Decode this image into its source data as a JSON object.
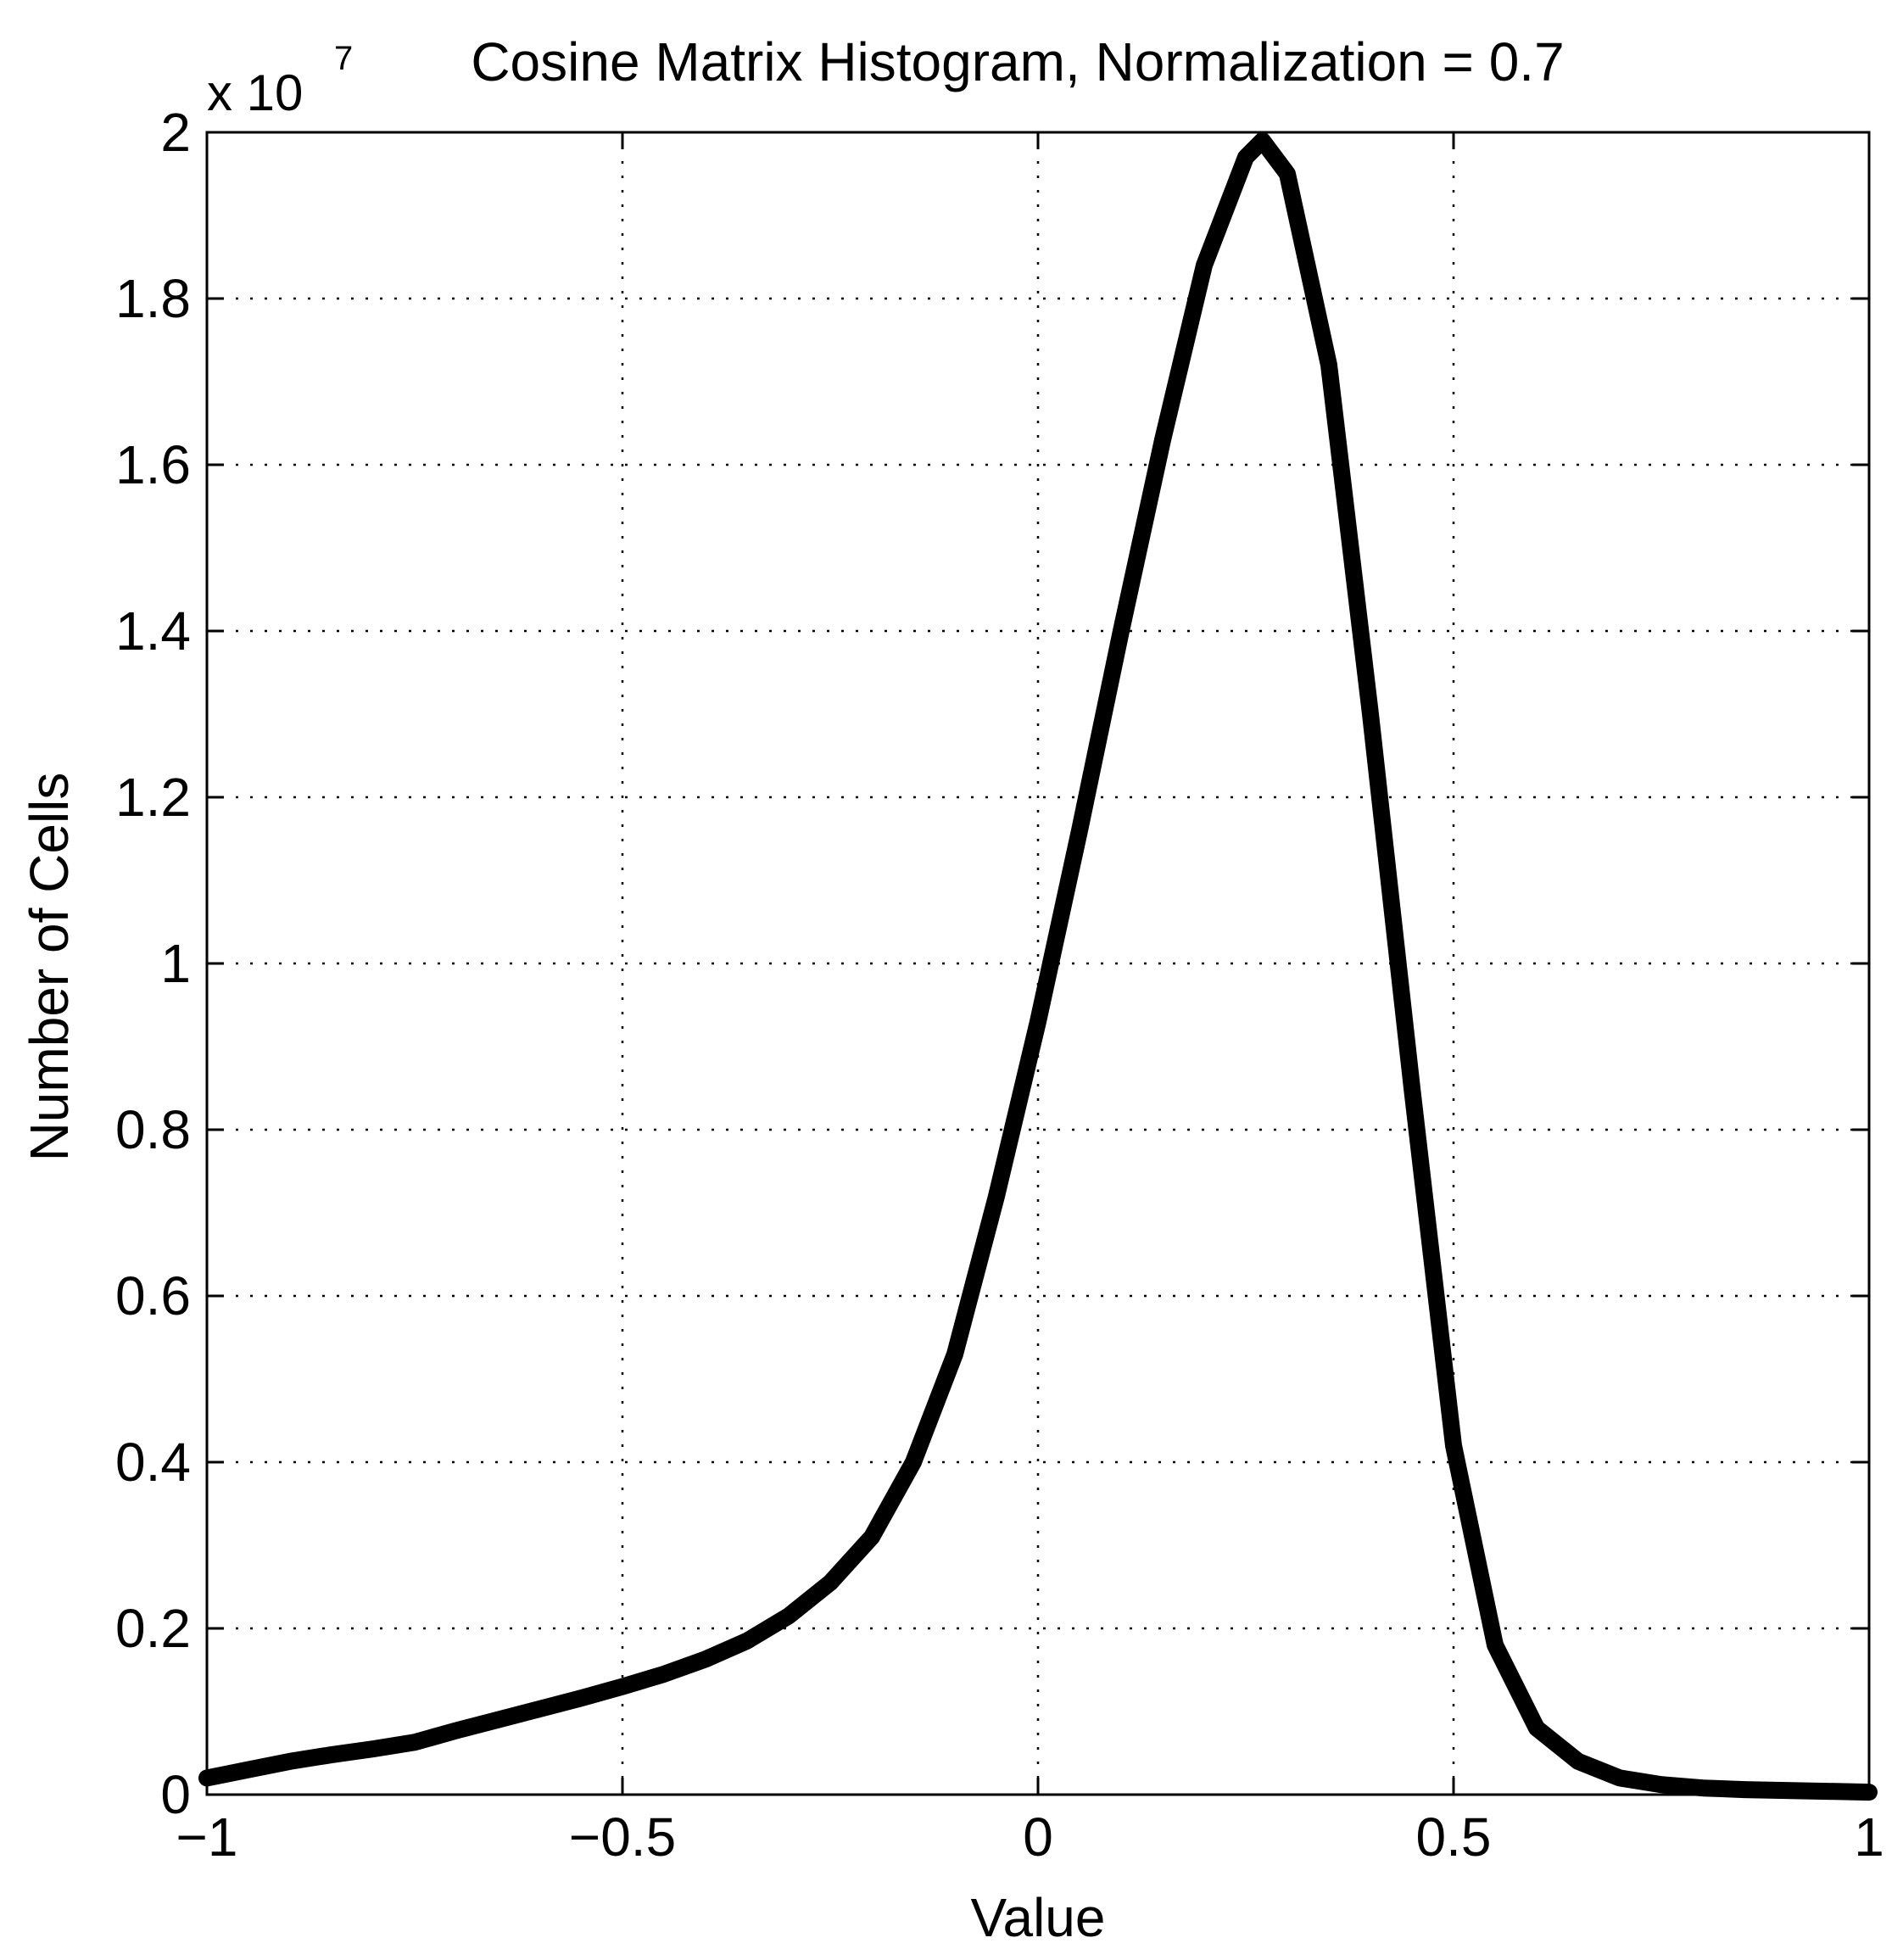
{
  "chart_data": {
    "type": "line",
    "title": "Cosine Matrix Histogram, Normalization = 0.7",
    "xlabel": "Value",
    "ylabel": "Number of Cells",
    "y_scale_prefix": "x 10",
    "y_scale_exponent": "7",
    "xlim": [
      -1,
      1
    ],
    "ylim": [
      0,
      2
    ],
    "x_ticks": [
      -1,
      -0.5,
      0,
      0.5,
      1
    ],
    "x_tick_labels": [
      "−1",
      "−0.5",
      "0",
      "0.5",
      "1"
    ],
    "y_ticks": [
      0,
      0.2,
      0.4,
      0.6,
      0.8,
      1,
      1.2,
      1.4,
      1.6,
      1.8,
      2
    ],
    "y_tick_labels": [
      "0",
      "0.2",
      "0.4",
      "0.6",
      "0.8",
      "1",
      "1.2",
      "1.4",
      "1.6",
      "1.8",
      "2"
    ],
    "grid": true,
    "line_color": "#000000",
    "series": [
      {
        "x": [
          -1.0,
          -0.95,
          -0.9,
          -0.85,
          -0.8,
          -0.75,
          -0.7,
          -0.65,
          -0.6,
          -0.55,
          -0.5,
          -0.45,
          -0.4,
          -0.35,
          -0.3,
          -0.25,
          -0.2,
          -0.15,
          -0.1,
          -0.05,
          0.0,
          0.05,
          0.1,
          0.15,
          0.2,
          0.25,
          0.27,
          0.3,
          0.35,
          0.4,
          0.45,
          0.5,
          0.55,
          0.6,
          0.65,
          0.7,
          0.75,
          0.8,
          0.85,
          0.9,
          0.95,
          1.0
        ],
        "y": [
          0.02,
          0.03,
          0.04,
          0.048,
          0.055,
          0.063,
          0.077,
          0.09,
          0.103,
          0.116,
          0.13,
          0.145,
          0.163,
          0.185,
          0.215,
          0.255,
          0.31,
          0.4,
          0.53,
          0.72,
          0.93,
          1.16,
          1.4,
          1.63,
          1.84,
          1.97,
          1.99,
          1.95,
          1.72,
          1.3,
          0.85,
          0.42,
          0.18,
          0.08,
          0.04,
          0.02,
          0.012,
          0.008,
          0.006,
          0.005,
          0.004,
          0.003
        ]
      }
    ]
  }
}
